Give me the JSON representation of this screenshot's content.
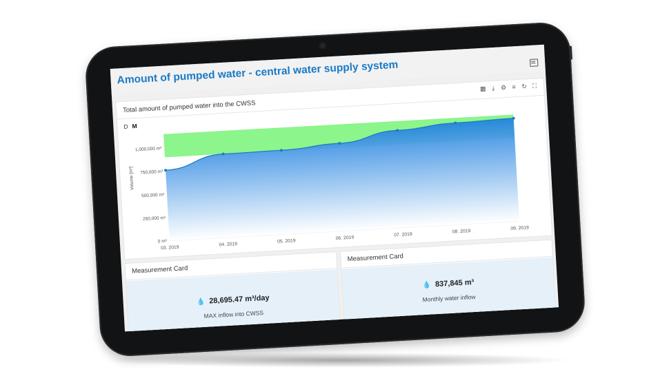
{
  "page": {
    "title": "Amount of pumped water - central water supply system"
  },
  "chart_card": {
    "title": "Total amount of pumped water into the CWSS",
    "tools": [
      {
        "name": "table-icon",
        "glyph": "▦"
      },
      {
        "name": "download-icon",
        "glyph": "⤓"
      },
      {
        "name": "gear-icon",
        "glyph": "⚙"
      },
      {
        "name": "filter-icon",
        "glyph": "≡"
      },
      {
        "name": "refresh-icon",
        "glyph": "↻"
      },
      {
        "name": "fullscreen-icon",
        "glyph": "⛶"
      }
    ],
    "period_buttons": [
      "D",
      "M"
    ],
    "active_period": "M"
  },
  "chart_data": {
    "type": "area",
    "x": [
      "03. 2019",
      "04. 2019",
      "05. 2019",
      "06. 2019",
      "07. 2019",
      "08. 2019",
      "09. 2019"
    ],
    "values": [
      760000,
      900000,
      905000,
      945000,
      1050000,
      1095000,
      1110000
    ],
    "ylabel": "Volume [m³]",
    "y_ticks": [
      "0 m³",
      "250,000 m³",
      "500,000 m³",
      "750,000 m³",
      "1,000,000 m³"
    ],
    "ylim": [
      0,
      1150000
    ],
    "band": [
      900000,
      1150000
    ],
    "colors": {
      "line": "#1f7bc4",
      "band": "#8cf58c",
      "area_top": "#1e80e0",
      "area_bottom": "#ffffff"
    }
  },
  "cards": [
    {
      "header": "Measurement Card",
      "value": "28,695.47 m³/day",
      "label": "MAX inflow into CWSS"
    },
    {
      "header": "Measurement Card",
      "value": "837,845 m³",
      "label": "Monthly water inflow"
    }
  ]
}
